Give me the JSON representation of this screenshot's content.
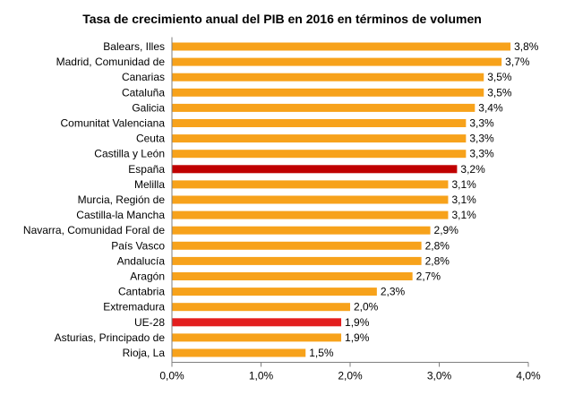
{
  "chart_data": {
    "type": "bar",
    "orientation": "horizontal",
    "title": "Tasa de crecimiento anual del PIB en 2016 en términos de volumen",
    "categories": [
      "Balears, Illes",
      "Madrid, Comunidad de",
      "Canarias",
      "Cataluña",
      "Galicia",
      "Comunitat Valenciana",
      "Ceuta",
      "Castilla y León",
      "España",
      "Melilla",
      "Murcia, Región de",
      "Castilla-la Mancha",
      "Navarra, Comunidad Foral de",
      "País Vasco",
      "Andalucía",
      "Aragón",
      "Cantabria",
      "Extremadura",
      "UE-28",
      "Asturias, Principado de",
      "Rioja, La"
    ],
    "values": [
      3.8,
      3.7,
      3.5,
      3.5,
      3.4,
      3.3,
      3.3,
      3.3,
      3.2,
      3.1,
      3.1,
      3.1,
      2.9,
      2.8,
      2.8,
      2.7,
      2.3,
      2.0,
      1.9,
      1.9,
      1.5
    ],
    "value_labels": [
      "3,8%",
      "3,7%",
      "3,5%",
      "3,5%",
      "3,4%",
      "3,3%",
      "3,3%",
      "3,3%",
      "3,2%",
      "3,1%",
      "3,1%",
      "3,1%",
      "2,9%",
      "2,8%",
      "2,8%",
      "2,7%",
      "2,3%",
      "2,0%",
      "1,9%",
      "1,9%",
      "1,5%"
    ],
    "bar_colors": [
      "#F7A21B",
      "#F7A21B",
      "#F7A21B",
      "#F7A21B",
      "#F7A21B",
      "#F7A21B",
      "#F7A21B",
      "#F7A21B",
      "#C00000",
      "#F7A21B",
      "#F7A21B",
      "#F7A21B",
      "#F7A21B",
      "#F7A21B",
      "#F7A21B",
      "#F7A21B",
      "#F7A21B",
      "#F7A21B",
      "#E31E1E",
      "#F7A21B",
      "#F7A21B"
    ],
    "xlim": [
      0,
      4.0
    ],
    "xticks": [
      0,
      1,
      2,
      3,
      4
    ],
    "xtick_labels": [
      "0,0%",
      "1,0%",
      "2,0%",
      "3,0%",
      "4,0%"
    ],
    "grid": false,
    "legend": "none"
  }
}
